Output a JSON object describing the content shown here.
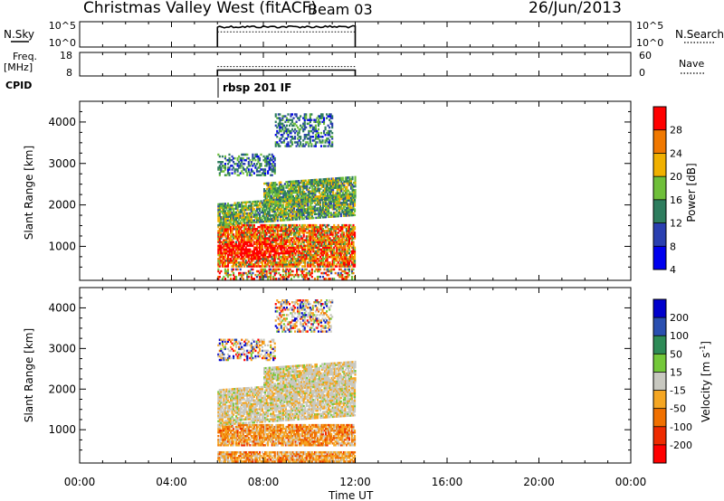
{
  "header": {
    "title": "Christmas Valley West (fitACF)",
    "beam": "Beam 03",
    "date": "26/Jun/2013"
  },
  "nsky_panel": {
    "left_label": "N.Sky",
    "left_ticks": [
      "10^5",
      "10^0"
    ],
    "right_ticks": [
      "10^5",
      "10^0"
    ],
    "right_label": "N.Search"
  },
  "freq_panel": {
    "left_label_line1": "Freq.",
    "left_label_line2": "[MHz]",
    "left_ticks": [
      "18",
      "8"
    ],
    "right_ticks": [
      "60",
      "0"
    ],
    "right_label": "Nave"
  },
  "cpid": {
    "label": "CPID",
    "program": "rbsp 201 IF"
  },
  "x_axis": {
    "label": "Time UT",
    "ticks": [
      "00:00",
      "04:00",
      "08:00",
      "12:00",
      "16:00",
      "20:00",
      "00:00"
    ]
  },
  "colors": {
    "power_scale": [
      "#0000ee",
      "#2a3fb0",
      "#2e7d5e",
      "#6fbf3a",
      "#f0b000",
      "#f07800",
      "#ff0000"
    ],
    "velocity_scale": [
      "#ff0000",
      "#ee2b00",
      "#f07000",
      "#f5a623",
      "#c8c8c0",
      "#74c83a",
      "#2e8b57",
      "#2a4fb0",
      "#0000cc"
    ]
  },
  "chart_data": [
    {
      "type": "line",
      "title": "",
      "panel": "N.Sky / N.Search",
      "x_range_hours": [
        0,
        24
      ],
      "data_extent_hours": [
        6.0,
        12.0
      ],
      "series": [
        {
          "name": "N.Sky",
          "style": "solid",
          "level": "~10^4",
          "x": [
            6,
            7,
            8,
            9,
            10,
            11,
            12
          ],
          "y_log10": [
            4,
            4,
            4,
            4,
            4,
            4,
            4
          ]
        },
        {
          "name": "N.Search",
          "style": "dotted",
          "level": "~10^3",
          "x": [
            6,
            7,
            8,
            9,
            10,
            11,
            12
          ],
          "y_log10": [
            3,
            3,
            3,
            3,
            3,
            3,
            3
          ]
        }
      ]
    },
    {
      "type": "line",
      "title": "",
      "panel": "Freq. / Nave",
      "x_range_hours": [
        0,
        24
      ],
      "left_ylim": [
        8,
        18
      ],
      "right_ylim": [
        0,
        60
      ],
      "series": [
        {
          "name": "Freq.",
          "style": "solid",
          "x": [
            6,
            12
          ],
          "y": [
            10.5,
            10.5
          ]
        },
        {
          "name": "Nave",
          "style": "dotted",
          "x": [
            6,
            12
          ],
          "y": [
            24,
            24
          ]
        }
      ]
    },
    {
      "type": "heatmap",
      "title": "",
      "ylabel": "Slant Range [km]",
      "xlabel": "Time UT",
      "ylim": [
        180,
        4500
      ],
      "yticks": [
        1000,
        2000,
        3000,
        4000
      ],
      "x_range_hours": [
        0,
        24
      ],
      "colorbar_label": "Power [dB]",
      "colorbar_ticks": [
        "28",
        "24",
        "20",
        "16",
        "12",
        "8",
        "4"
      ],
      "regions": [
        {
          "t0": 6.0,
          "t1": 12.0,
          "r0": 500,
          "r1": 1500,
          "level": "high",
          "peak_time": 7.5,
          "peak_range": 900
        },
        {
          "t0": 6.0,
          "t1": 12.0,
          "r0": 1500,
          "r1": 2000,
          "level": "mid"
        },
        {
          "t0": 8.0,
          "t1": 12.0,
          "r0": 2000,
          "r1": 2500,
          "level": "mid"
        },
        {
          "t0": 6.0,
          "t1": 8.5,
          "r0": 2700,
          "r1": 3200,
          "level": "low"
        },
        {
          "t0": 8.5,
          "t1": 11.0,
          "r0": 3400,
          "r1": 4200,
          "level": "low"
        },
        {
          "t0": 6.0,
          "t1": 12.0,
          "r0": 200,
          "r1": 450,
          "level": "mixed"
        }
      ]
    },
    {
      "type": "heatmap",
      "title": "",
      "ylabel": "Slant Range [km]",
      "xlabel": "Time UT",
      "ylim": [
        180,
        4500
      ],
      "yticks": [
        1000,
        2000,
        3000,
        4000
      ],
      "x_range_hours": [
        0,
        24
      ],
      "colorbar_label": "Velocity [m s^-1]",
      "colorbar_ticks": [
        "200",
        "100",
        "50",
        "15",
        "-15",
        "-50",
        "-100",
        "-200"
      ],
      "regions": [
        {
          "t0": 6.0,
          "t1": 12.0,
          "r0": 600,
          "r1": 1100,
          "level": "negative"
        },
        {
          "t0": 6.0,
          "t1": 12.0,
          "r0": 1100,
          "r1": 2000,
          "level": "near-zero"
        },
        {
          "t0": 8.0,
          "t1": 12.0,
          "r0": 2000,
          "r1": 2500,
          "level": "near-zero"
        },
        {
          "t0": 6.0,
          "t1": 8.5,
          "r0": 2700,
          "r1": 3200,
          "level": "mixed"
        },
        {
          "t0": 8.5,
          "t1": 11.0,
          "r0": 3400,
          "r1": 4200,
          "level": "mixed"
        },
        {
          "t0": 6.0,
          "t1": 12.0,
          "r0": 200,
          "r1": 450,
          "level": "negative"
        }
      ]
    }
  ]
}
